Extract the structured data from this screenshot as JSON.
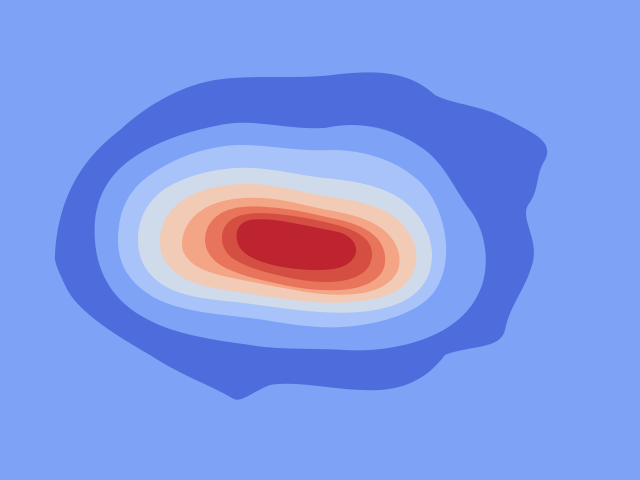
{
  "chart_data": {
    "type": "heatmap",
    "style": "filled-contour",
    "colormap": "coolwarm",
    "background_color": "#7ea3f6",
    "grid": false,
    "legend": "none",
    "levels": [
      {
        "level": 1,
        "color": "#4f6cdc"
      },
      {
        "level": 2,
        "color": "#7ea3f6"
      },
      {
        "level": 3,
        "color": "#a7c3f9"
      },
      {
        "level": 4,
        "color": "#cfdaea"
      },
      {
        "level": 5,
        "color": "#f2cbb7"
      },
      {
        "level": 6,
        "color": "#f4a586"
      },
      {
        "level": 7,
        "color": "#e8755b"
      },
      {
        "level": 8,
        "color": "#d44e41"
      },
      {
        "level": 9,
        "color": "#bd2430"
      }
    ]
  }
}
